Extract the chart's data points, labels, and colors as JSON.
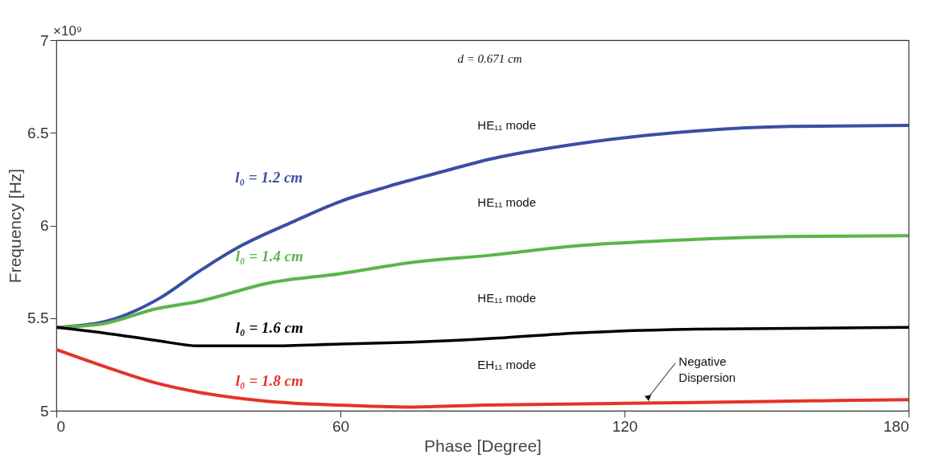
{
  "chart_data": {
    "type": "line",
    "xlabel": "Phase [Degree]",
    "ylabel": "Frequency [Hz]",
    "xlim": [
      0,
      180
    ],
    "xticks": [
      0,
      60,
      120,
      180
    ],
    "ylim": [
      5,
      7
    ],
    "yticks": [
      5,
      5.5,
      6,
      6.5,
      7
    ],
    "grid": false,
    "legend": false,
    "marker": "none",
    "line_style": "solid",
    "series": [
      {
        "name": "l₀ = 1.2 cm",
        "color": "#3a4fa3",
        "x": [
          0,
          10,
          22,
          30,
          39,
          50,
          60,
          70,
          80,
          92,
          110,
          135,
          155,
          180
        ],
        "values": [
          5.45,
          5.48,
          5.61,
          5.75,
          5.89,
          6.02,
          6.13,
          6.21,
          6.28,
          6.36,
          6.44,
          6.51,
          6.535,
          6.54
        ]
      },
      {
        "name": "l₀ = 1.4 cm",
        "color": "#5bb54a",
        "x": [
          0,
          10,
          21,
          30,
          45,
          60,
          75,
          92,
          110,
          135,
          155,
          180
        ],
        "values": [
          5.45,
          5.47,
          5.55,
          5.59,
          5.69,
          5.74,
          5.8,
          5.84,
          5.89,
          5.925,
          5.94,
          5.945
        ]
      },
      {
        "name": "l₀ = 1.6 cm",
        "color": "#000000",
        "x": [
          0,
          10,
          21,
          30,
          45,
          60,
          75,
          92,
          110,
          135,
          180
        ],
        "values": [
          5.45,
          5.42,
          5.38,
          5.35,
          5.35,
          5.36,
          5.37,
          5.39,
          5.42,
          5.44,
          5.45
        ]
      },
      {
        "name": "l₀ = 1.8 cm",
        "color": "#e5332a",
        "x": [
          0,
          10,
          21,
          30,
          45,
          60,
          75,
          90,
          120,
          150,
          180
        ],
        "values": [
          5.33,
          5.24,
          5.15,
          5.1,
          5.05,
          5.03,
          5.02,
          5.03,
          5.04,
          5.05,
          5.06
        ]
      }
    ],
    "annotations": [
      "×10⁹",
      "d = 0.671 cm",
      "HE₁₁ mode",
      "HE₁₁ mode",
      "HE₁₁ mode",
      "EH₁₁ mode",
      {
        "text": "Negative\nDispersion",
        "x": 125,
        "y": 5.05
      }
    ]
  }
}
